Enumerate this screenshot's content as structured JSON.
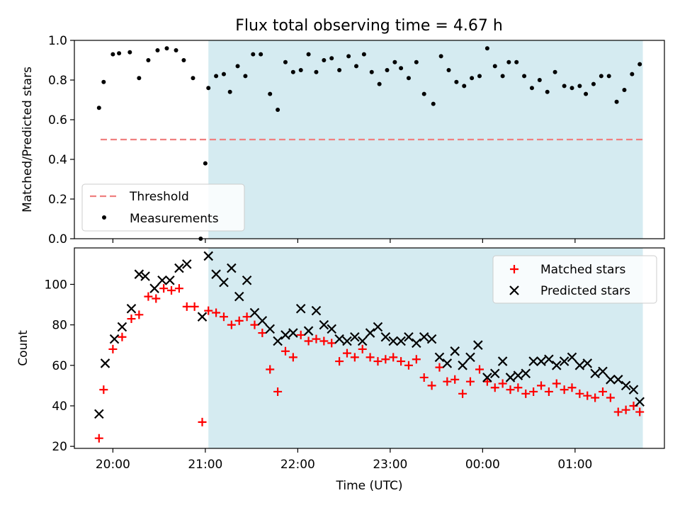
{
  "title": "Flux total observing time = 4.67 h",
  "chart_data": [
    {
      "type": "scatter",
      "panel": "top",
      "ylabel": "Matched/Predicted stars",
      "xlim": [
        "19:35",
        "01:58"
      ],
      "ylim": [
        0,
        1.0
      ],
      "yticks": [
        0.0,
        0.2,
        0.4,
        0.6,
        0.8,
        1.0
      ],
      "ytick_labels": [
        "0.0",
        "0.2",
        "0.4",
        "0.6",
        "0.8",
        "1.0"
      ],
      "shaded_span": {
        "start": "21:02",
        "end": "01:44",
        "color": "#d5ebf1"
      },
      "threshold": {
        "name": "Threshold",
        "y": 0.5,
        "x_start": "19:52",
        "x_end": "01:44",
        "color": "#f08080"
      },
      "legend": {
        "position": "lower-left",
        "entries": [
          "Threshold",
          "Measurements"
        ]
      },
      "series": [
        {
          "name": "Measurements",
          "color": "#000000",
          "marker": "dot",
          "points": [
            [
              "19:51",
              0.66
            ],
            [
              "19:54",
              0.79
            ],
            [
              "20:00",
              0.93
            ],
            [
              "20:04",
              0.935
            ],
            [
              "20:11",
              0.94
            ],
            [
              "20:17",
              0.81
            ],
            [
              "20:23",
              0.9
            ],
            [
              "20:29",
              0.95
            ],
            [
              "20:35",
              0.96
            ],
            [
              "20:41",
              0.95
            ],
            [
              "20:46",
              0.9
            ],
            [
              "20:52",
              0.81
            ],
            [
              "20:57",
              0.0
            ],
            [
              "21:00",
              0.38
            ],
            [
              "21:02",
              0.76
            ],
            [
              "21:07",
              0.82
            ],
            [
              "21:12",
              0.83
            ],
            [
              "21:16",
              0.74
            ],
            [
              "21:21",
              0.87
            ],
            [
              "21:26",
              0.82
            ],
            [
              "21:31",
              0.93
            ],
            [
              "21:36",
              0.93
            ],
            [
              "21:42",
              0.73
            ],
            [
              "21:47",
              0.65
            ],
            [
              "21:52",
              0.89
            ],
            [
              "21:57",
              0.84
            ],
            [
              "22:02",
              0.85
            ],
            [
              "22:07",
              0.93
            ],
            [
              "22:12",
              0.84
            ],
            [
              "22:17",
              0.9
            ],
            [
              "22:22",
              0.91
            ],
            [
              "22:27",
              0.85
            ],
            [
              "22:33",
              0.92
            ],
            [
              "22:38",
              0.87
            ],
            [
              "22:43",
              0.93
            ],
            [
              "22:48",
              0.84
            ],
            [
              "22:53",
              0.78
            ],
            [
              "22:58",
              0.85
            ],
            [
              "23:03",
              0.89
            ],
            [
              "23:07",
              0.86
            ],
            [
              "23:12",
              0.81
            ],
            [
              "23:17",
              0.89
            ],
            [
              "23:22",
              0.73
            ],
            [
              "23:28",
              0.68
            ],
            [
              "23:33",
              0.92
            ],
            [
              "23:38",
              0.85
            ],
            [
              "23:43",
              0.79
            ],
            [
              "23:48",
              0.77
            ],
            [
              "23:53",
              0.81
            ],
            [
              "23:58",
              0.82
            ],
            [
              "00:03",
              0.96
            ],
            [
              "00:08",
              0.87
            ],
            [
              "00:13",
              0.82
            ],
            [
              "00:17",
              0.89
            ],
            [
              "00:22",
              0.89
            ],
            [
              "00:27",
              0.82
            ],
            [
              "00:32",
              0.76
            ],
            [
              "00:37",
              0.8
            ],
            [
              "00:42",
              0.74
            ],
            [
              "00:47",
              0.84
            ],
            [
              "00:53",
              0.77
            ],
            [
              "00:58",
              0.76
            ],
            [
              "01:03",
              0.77
            ],
            [
              "01:07",
              0.73
            ],
            [
              "01:12",
              0.78
            ],
            [
              "01:17",
              0.82
            ],
            [
              "01:22",
              0.82
            ],
            [
              "01:27",
              0.69
            ],
            [
              "01:32",
              0.75
            ],
            [
              "01:37",
              0.83
            ],
            [
              "01:42",
              0.88
            ]
          ]
        }
      ]
    },
    {
      "type": "scatter",
      "panel": "bottom",
      "xlabel": "Time (UTC)",
      "ylabel": "Count",
      "xlim": [
        "19:35",
        "01:58"
      ],
      "ylim": [
        19,
        118
      ],
      "yticks": [
        20,
        40,
        60,
        80,
        100
      ],
      "ytick_labels": [
        "20",
        "40",
        "60",
        "80",
        "100"
      ],
      "xticks": [
        "20:00",
        "21:00",
        "22:00",
        "23:00",
        "00:00",
        "01:00"
      ],
      "xtick_labels": [
        "20:00",
        "21:00",
        "22:00",
        "23:00",
        "00:00",
        "01:00"
      ],
      "shaded_span": {
        "start": "21:02",
        "end": "01:44",
        "color": "#d5ebf1"
      },
      "legend": {
        "position": "top-right",
        "entries": [
          "Matched stars",
          "Predicted stars"
        ]
      },
      "series": [
        {
          "name": "Matched stars",
          "color": "#ff0000",
          "marker": "plus",
          "points": [
            [
              "19:51",
              24
            ],
            [
              "19:54",
              48
            ],
            [
              "20:00",
              68
            ],
            [
              "20:06",
              74
            ],
            [
              "20:12",
              83
            ],
            [
              "20:17",
              85
            ],
            [
              "20:23",
              94
            ],
            [
              "20:28",
              93
            ],
            [
              "20:33",
              98
            ],
            [
              "20:38",
              97
            ],
            [
              "20:43",
              98
            ],
            [
              "20:48",
              89
            ],
            [
              "20:53",
              89
            ],
            [
              "20:58",
              32
            ],
            [
              "21:02",
              87
            ],
            [
              "21:07",
              86
            ],
            [
              "21:12",
              84
            ],
            [
              "21:17",
              80
            ],
            [
              "21:22",
              82
            ],
            [
              "21:27",
              84
            ],
            [
              "21:32",
              80
            ],
            [
              "21:37",
              76
            ],
            [
              "21:42",
              58
            ],
            [
              "21:47",
              47
            ],
            [
              "21:52",
              67
            ],
            [
              "21:57",
              64
            ],
            [
              "22:02",
              75
            ],
            [
              "22:07",
              72
            ],
            [
              "22:12",
              73
            ],
            [
              "22:17",
              72
            ],
            [
              "22:22",
              71
            ],
            [
              "22:27",
              62
            ],
            [
              "22:32",
              66
            ],
            [
              "22:37",
              64
            ],
            [
              "22:42",
              68
            ],
            [
              "22:47",
              64
            ],
            [
              "22:52",
              62
            ],
            [
              "22:57",
              63
            ],
            [
              "23:02",
              64
            ],
            [
              "23:07",
              62
            ],
            [
              "23:12",
              60
            ],
            [
              "23:17",
              63
            ],
            [
              "23:22",
              54
            ],
            [
              "23:27",
              50
            ],
            [
              "23:32",
              59
            ],
            [
              "23:37",
              52
            ],
            [
              "23:42",
              53
            ],
            [
              "23:47",
              46
            ],
            [
              "23:52",
              52
            ],
            [
              "23:58",
              58
            ],
            [
              "00:03",
              52
            ],
            [
              "00:08",
              49
            ],
            [
              "00:13",
              51
            ],
            [
              "00:18",
              48
            ],
            [
              "00:23",
              49
            ],
            [
              "00:28",
              46
            ],
            [
              "00:33",
              47
            ],
            [
              "00:38",
              50
            ],
            [
              "00:43",
              47
            ],
            [
              "00:48",
              51
            ],
            [
              "00:53",
              48
            ],
            [
              "00:58",
              49
            ],
            [
              "01:03",
              46
            ],
            [
              "01:08",
              45
            ],
            [
              "01:13",
              44
            ],
            [
              "01:18",
              47
            ],
            [
              "01:23",
              44
            ],
            [
              "01:28",
              37
            ],
            [
              "01:33",
              38
            ],
            [
              "01:38",
              40
            ],
            [
              "01:42",
              37
            ]
          ]
        },
        {
          "name": "Predicted stars",
          "color": "#000000",
          "marker": "x",
          "points": [
            [
              "19:51",
              36
            ],
            [
              "19:55",
              61
            ],
            [
              "20:01",
              73
            ],
            [
              "20:06",
              79
            ],
            [
              "20:12",
              88
            ],
            [
              "20:17",
              105
            ],
            [
              "20:21",
              104
            ],
            [
              "20:27",
              98
            ],
            [
              "20:32",
              102
            ],
            [
              "20:37",
              102
            ],
            [
              "20:43",
              108
            ],
            [
              "20:48",
              110
            ],
            [
              "20:58",
              84
            ],
            [
              "21:02",
              114
            ],
            [
              "21:07",
              105
            ],
            [
              "21:12",
              101
            ],
            [
              "21:17",
              108
            ],
            [
              "21:22",
              94
            ],
            [
              "21:27",
              102
            ],
            [
              "21:32",
              86
            ],
            [
              "21:37",
              82
            ],
            [
              "21:42",
              78
            ],
            [
              "21:47",
              72
            ],
            [
              "21:52",
              75
            ],
            [
              "21:57",
              76
            ],
            [
              "22:02",
              88
            ],
            [
              "22:07",
              77
            ],
            [
              "22:12",
              87
            ],
            [
              "22:17",
              80
            ],
            [
              "22:22",
              78
            ],
            [
              "22:27",
              73
            ],
            [
              "22:32",
              72
            ],
            [
              "22:37",
              74
            ],
            [
              "22:42",
              72
            ],
            [
              "22:47",
              76
            ],
            [
              "22:52",
              79
            ],
            [
              "22:57",
              74
            ],
            [
              "23:02",
              72
            ],
            [
              "23:07",
              72
            ],
            [
              "23:12",
              74
            ],
            [
              "23:17",
              71
            ],
            [
              "23:22",
              74
            ],
            [
              "23:27",
              73
            ],
            [
              "23:32",
              64
            ],
            [
              "23:37",
              61
            ],
            [
              "23:42",
              67
            ],
            [
              "23:47",
              60
            ],
            [
              "23:52",
              64
            ],
            [
              "23:57",
              70
            ],
            [
              "00:03",
              54
            ],
            [
              "00:08",
              56
            ],
            [
              "00:13",
              62
            ],
            [
              "00:18",
              54
            ],
            [
              "00:23",
              55
            ],
            [
              "00:28",
              56
            ],
            [
              "00:33",
              62
            ],
            [
              "00:38",
              62
            ],
            [
              "00:43",
              63
            ],
            [
              "00:48",
              60
            ],
            [
              "00:53",
              62
            ],
            [
              "00:58",
              64
            ],
            [
              "01:03",
              60
            ],
            [
              "01:08",
              61
            ],
            [
              "01:13",
              56
            ],
            [
              "01:18",
              57
            ],
            [
              "01:23",
              53
            ],
            [
              "01:28",
              53
            ],
            [
              "01:33",
              50
            ],
            [
              "01:38",
              48
            ],
            [
              "01:42",
              42
            ]
          ]
        }
      ]
    }
  ]
}
